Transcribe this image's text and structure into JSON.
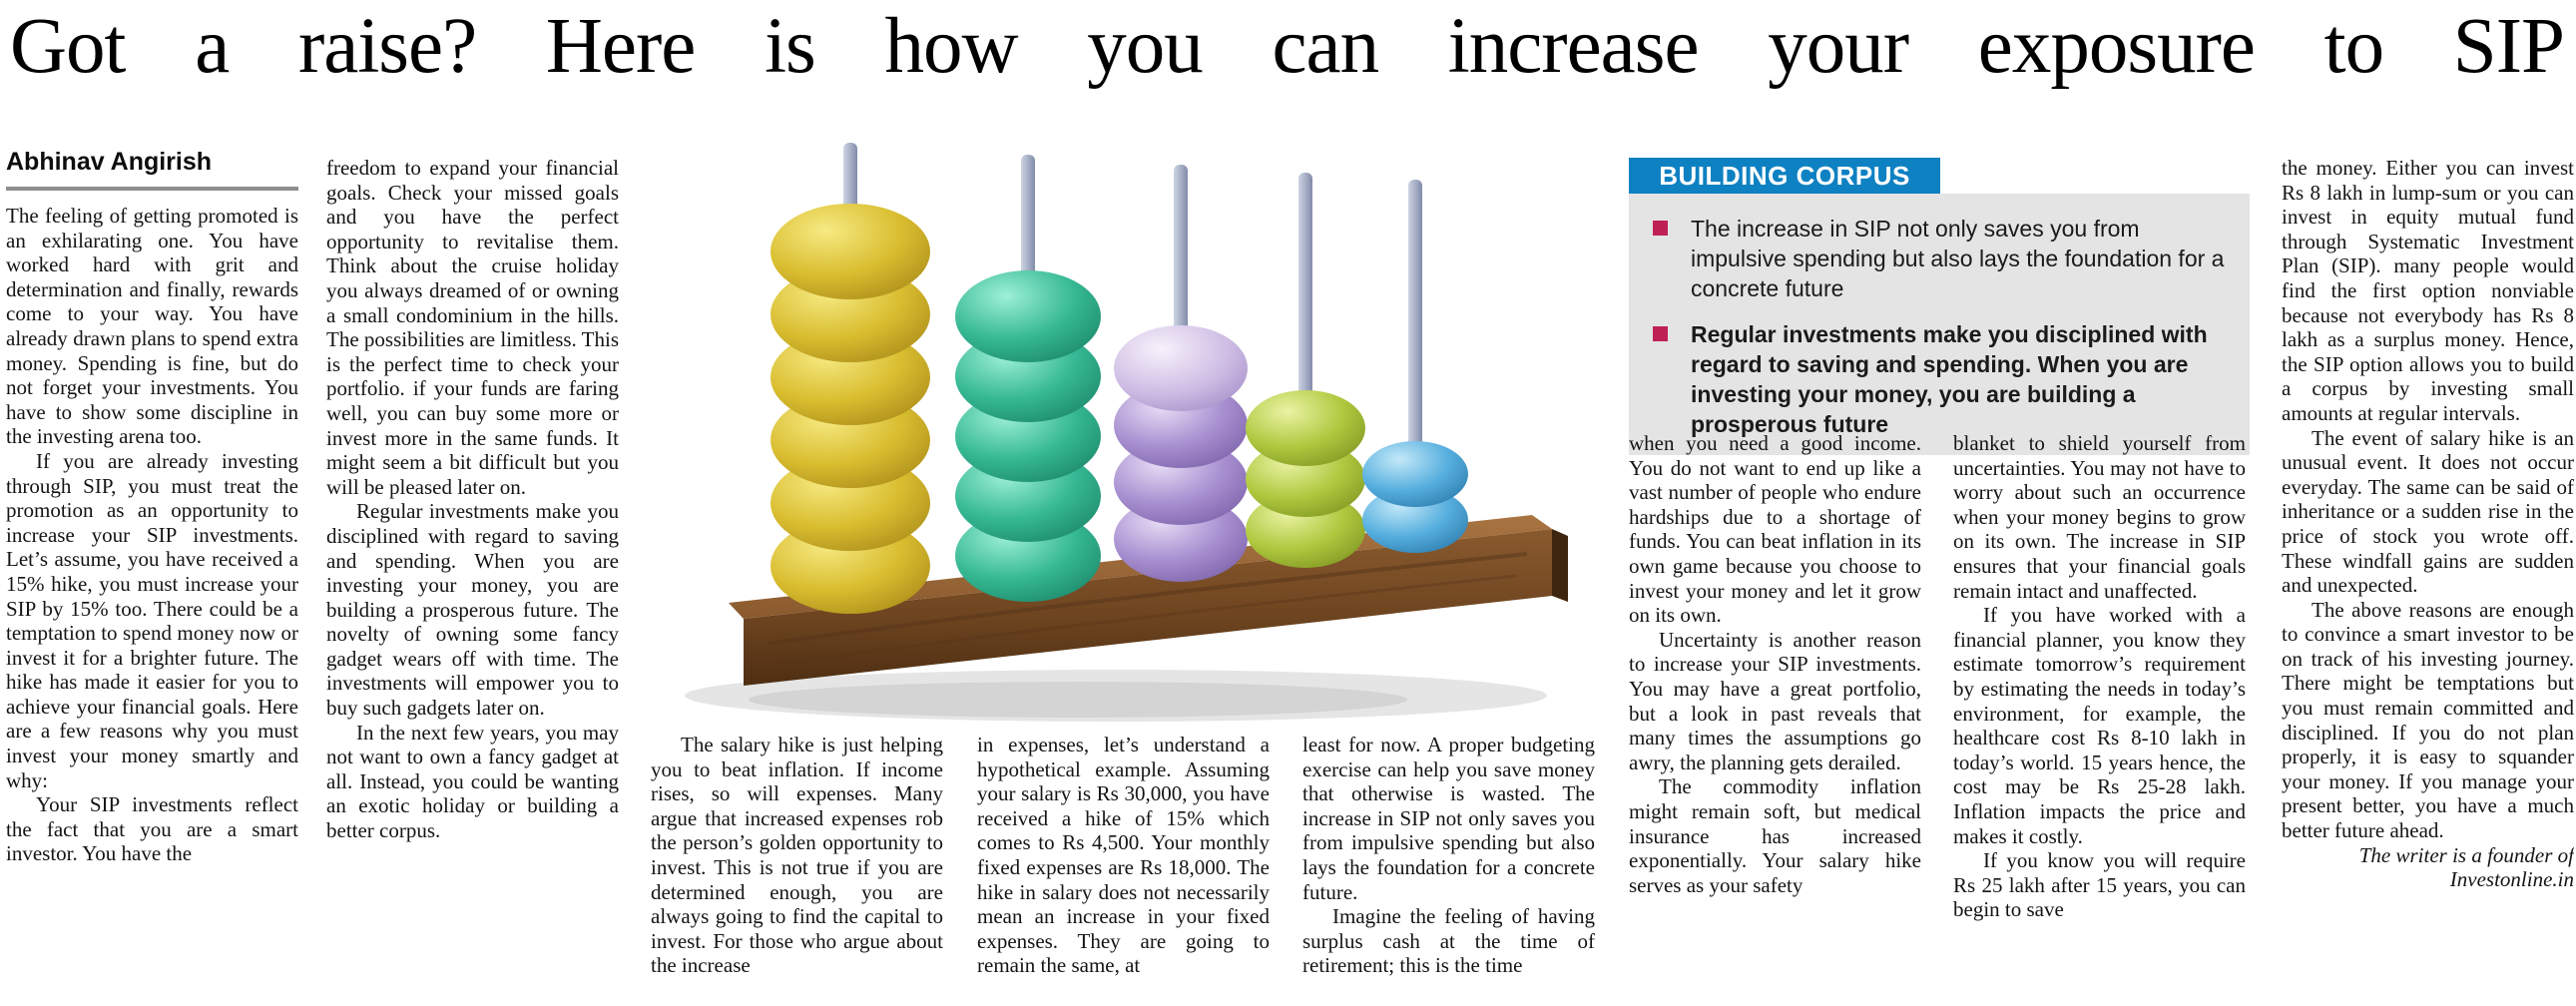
{
  "headline": "Got a raise? Here is how you can increase your exposure to SIP",
  "byline": "Abhinav Angirish",
  "article": {
    "col1": [
      "The feeling of getting promoted is an exhilarating one. You have worked hard with grit and determination and finally, rewards come to your way. You have already drawn plans to spend extra money. Spending is fine, but do not forget your investments. You have to show some discipline in the investing arena too.",
      "If you are already investing through SIP, you must treat the promotion as an opportunity to increase your SIP investments. Let’s assume, you have received a 15% hike, you must increase your SIP by 15% too. There could be a temptation to spend money now or invest it for a brighter future. The hike has made it easier for you to achieve your financial goals. Here are a few reasons why you must invest your money smartly and why:",
      "Your SIP investments reflect the fact that you are a smart investor. You have the"
    ],
    "col2": [
      "freedom to expand your financial goals. Check your missed goals and you have the perfect opportunity to revitalise them. Think about the cruise holiday you always dreamed of or owning a small condominium in the hills. The possibilities are limitless. This is the perfect time to check your portfolio. if your funds are faring well, you can buy some more or invest more in the same funds. It might seem a bit difficult but you will be pleased later on.",
      "Regular investments make you disciplined with regard to saving and spending. When you are investing your money, you are building a prosperous future. The novelty of owning some fancy gadget wears off with time. The investments will empower you to buy such gadgets later on.",
      "In the next few years, you may not want to own a fancy gadget at all. Instead, you could be wanting an exotic holiday or building a better corpus."
    ],
    "col3": [
      "The salary hike is just helping you to beat inflation. If income rises, so will expenses. Many argue that increased expenses rob the person’s golden opportunity to invest. This is not true if you are determined enough, you are always going to find the capital to invest. For those who argue about the increase"
    ],
    "col4": [
      "in expenses, let’s understand a hypothetical example. Assuming your salary is Rs 30,000, you have received a hike of 15% which comes to Rs 4,500. Your monthly fixed expenses are Rs 18,000. The hike in salary does not necessarily mean an increase in your fixed expenses. They are going to remain the same, at"
    ],
    "col5": [
      "least for now. A proper budgeting exercise can help you save money that otherwise is wasted. The increase in SIP not only saves you from impulsive spending but also lays the foundation for a concrete future.",
      "Imagine the feeling of having surplus cash at the time of retirement; this is the time"
    ],
    "col6": [
      "when you need a good income. You do not want to end up like a vast number of people who endure hardships due to a shortage of funds. You can beat inflation in its own game because you choose to invest your money and let it grow on its own.",
      "Uncertainty is another reason to increase your SIP investments. You may have a great portfolio, but a look in past reveals that many times the assumptions go awry, the planning gets derailed.",
      "The commodity inflation might remain soft, but medical insurance has increased exponentially. Your salary hike serves as your safety"
    ],
    "col7": [
      "blanket to shield yourself from uncertainties. You may not have to worry about such an occurrence when your money begins to grow on its own. The increase in SIP ensures that your financial goals remain intact and unaffected.",
      "If you have worked with a financial planner, you know they estimate tomorrow’s requirement by estimating the needs in today’s environment, for example, the healthcare cost Rs 8-10 lakh in today’s world. 15 years hence, the cost may be Rs 25-28 lakh. Inflation impacts the price and makes it costly.",
      "If you know you will require Rs 25 lakh after 15 years, you can begin to save"
    ],
    "col8": [
      "the money. Either you can invest Rs 8 lakh in lump-sum or you can invest in equity mutual fund through Systematic Investment Plan (SIP). many people would find the first option nonviable because not everybody has Rs 8 lakh as a surplus money. Hence, the SIP option allows you to build a corpus by investing small amounts at regular intervals.",
      "The event of salary hike is an unusual event. It does not occur everyday. The same can be said of inheritance or a sudden rise in the price of stock you wrote off. These windfall gains are sudden and unexpected.",
      "The above reasons are enough to convince a smart investor to be on track of his investing journey. There might be temptations but you must remain committed and disciplined. If you do not plan properly, it is easy to squander your money. If you manage your present better, you have a much better future ahead."
    ],
    "credit": "The writer is a founder of Investonline.in"
  },
  "corpus": {
    "title": "BUILDING CORPUS",
    "bullets": [
      {
        "text": "The increase in SIP not only saves you from impulsive spending but also lays the foundation for a concrete future",
        "bold": false
      },
      {
        "text": "Regular investments make you disciplined with regard to saving and spending. When you are investing your money, you are building a prosperous future",
        "bold": true
      }
    ]
  },
  "colors": {
    "corpus_header_blue": "#0e81c2",
    "corpus_box_gray": "#e4e4e4",
    "bullet_square_pink": "#bf2155",
    "headline_black": "#000000"
  },
  "abacus": {
    "description": "wooden abacus with five rods, bead counts descending left to right",
    "rods": [
      {
        "bead_color": "yellow",
        "bead_count": 6
      },
      {
        "bead_color": "teal",
        "bead_count": 5
      },
      {
        "bead_color": "purple",
        "bead_count": 4,
        "top_bead_color": "lavender"
      },
      {
        "bead_color": "lime",
        "bead_count": 3
      },
      {
        "bead_color": "blue",
        "bead_count": 2
      }
    ]
  }
}
